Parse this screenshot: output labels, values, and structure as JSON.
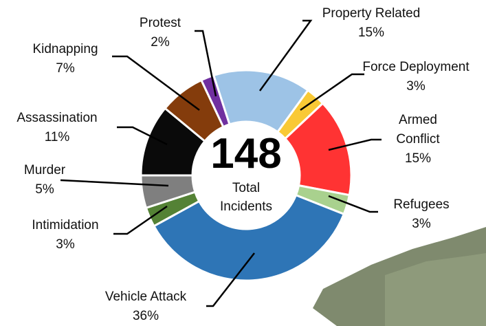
{
  "chart_data": {
    "type": "pie",
    "categories": [
      "Property Related",
      "Force Deployment",
      "Armed Conflict",
      "Refugees",
      "Vehicle Attack",
      "Intimidation",
      "Murder",
      "Assassination",
      "Kidnapping",
      "Protest"
    ],
    "values": [
      15,
      3,
      15,
      3,
      36,
      3,
      5,
      11,
      7,
      2
    ],
    "value_labels": [
      "15%",
      "3%",
      "15%",
      "3%",
      "36%",
      "3%",
      "5%",
      "11%",
      "7%",
      "2%"
    ],
    "colors": [
      "#9dc3e6",
      "#f9c935",
      "#ff3333",
      "#a9d18e",
      "#2e75b6",
      "#548235",
      "#7f7f7f",
      "#0a0a0a",
      "#843c0c",
      "#7030a0"
    ],
    "center_value": 148,
    "center_label": "Total Incidents"
  }
}
